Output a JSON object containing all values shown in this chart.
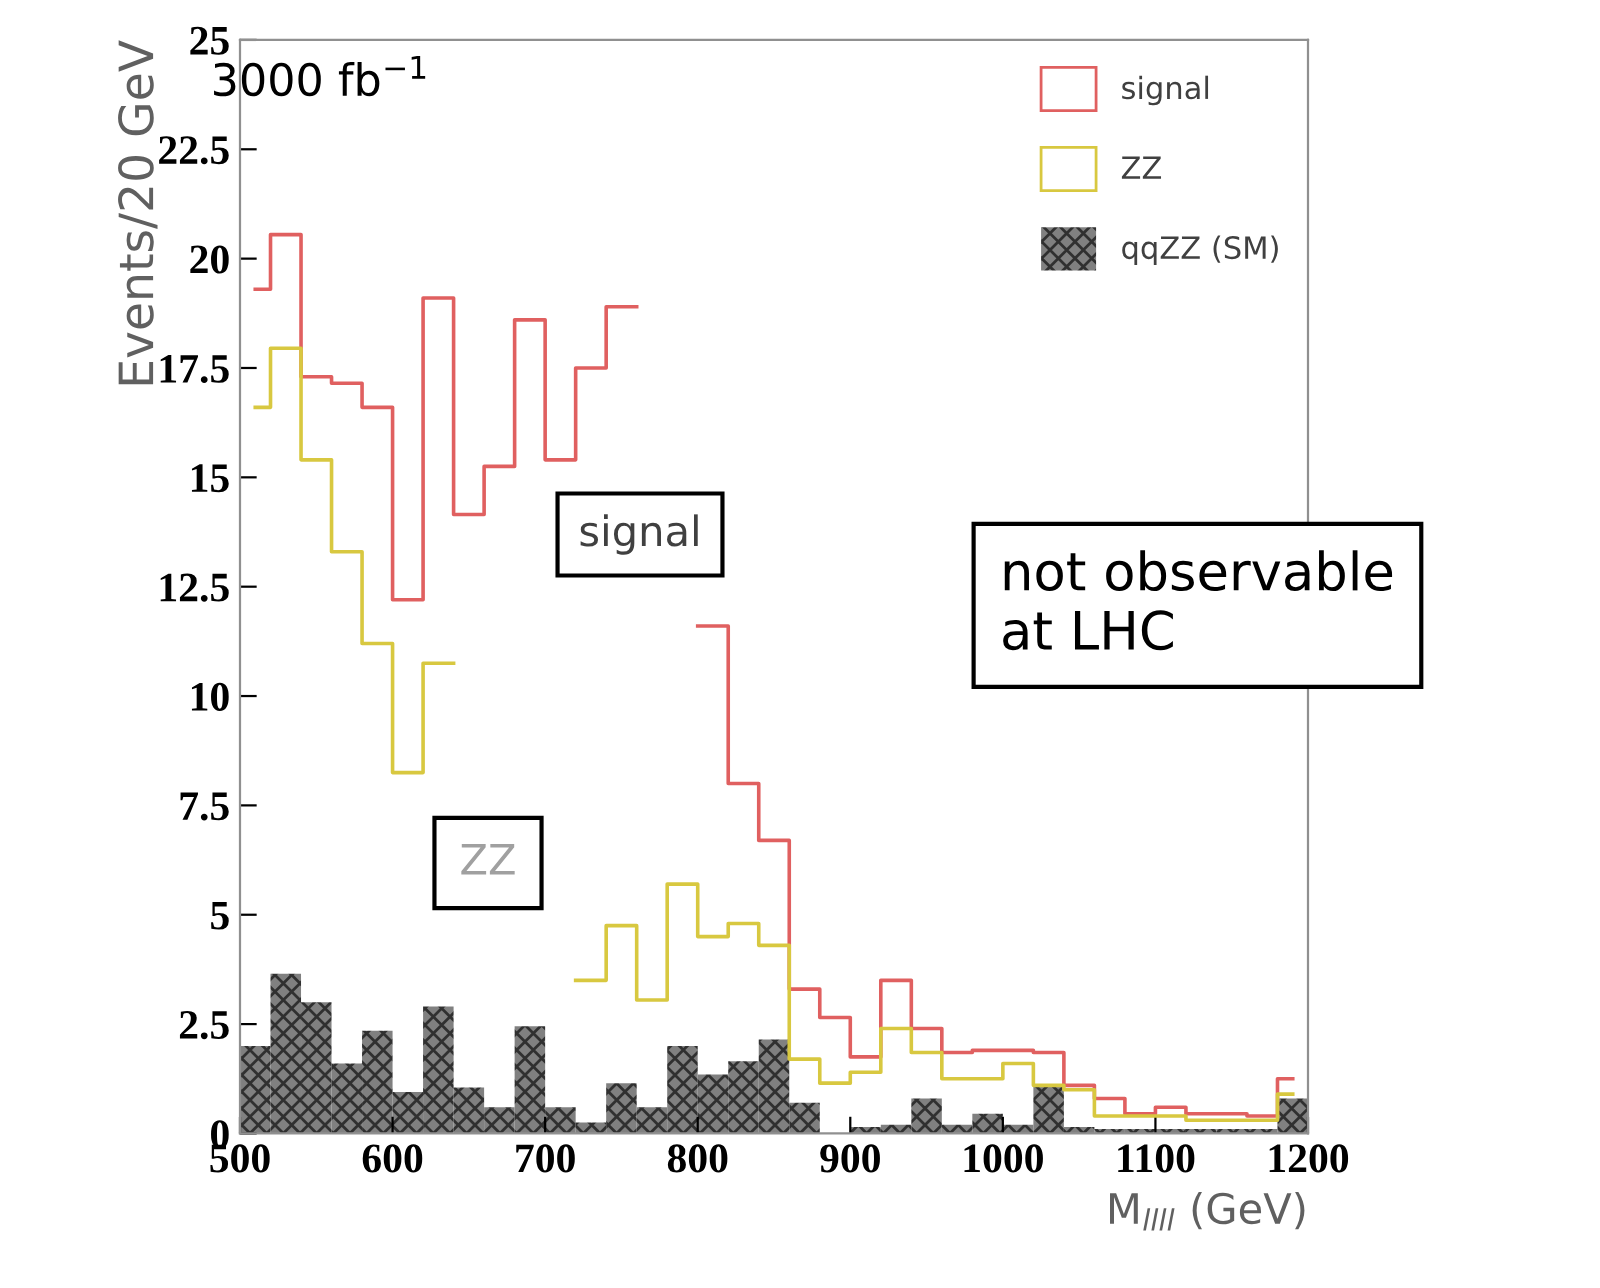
{
  "chart_data": {
    "type": "step",
    "x": [
      510,
      530,
      550,
      570,
      590,
      610,
      630,
      650,
      670,
      690,
      710,
      730,
      750,
      770,
      790,
      810,
      830,
      850,
      870,
      890,
      910,
      930,
      950,
      970,
      990,
      1010,
      1030,
      1050,
      1070,
      1090,
      1110,
      1130,
      1150,
      1170,
      1190
    ],
    "series": [
      {
        "name": "signal",
        "color": "#e06060",
        "values": [
          19.3,
          20.55,
          17.3,
          17.15,
          16.6,
          12.2,
          19.1,
          14.15,
          15.25,
          18.6,
          15.4,
          17.5,
          18.9,
          null,
          null,
          11.6,
          8.0,
          6.7,
          3.3,
          2.65,
          1.75,
          3.5,
          2.4,
          1.85,
          1.9,
          1.9,
          1.85,
          1.1,
          0.8,
          0.45,
          0.6,
          0.45,
          0.45,
          0.4,
          1.25
        ]
      },
      {
        "name": "ZZ",
        "color": "#d8c840",
        "values": [
          16.6,
          17.95,
          15.4,
          13.3,
          11.2,
          8.25,
          10.75,
          null,
          null,
          null,
          null,
          3.5,
          4.75,
          3.05,
          5.7,
          4.5,
          4.8,
          4.3,
          1.7,
          1.15,
          1.4,
          2.4,
          1.85,
          1.25,
          1.25,
          1.6,
          1.1,
          1.0,
          0.4,
          0.4,
          0.4,
          0.3,
          0.3,
          0.3,
          0.9
        ]
      },
      {
        "name": "qqZZ (SM)",
        "type": "bar",
        "color": "#808080",
        "values": [
          2.0,
          3.65,
          3.0,
          1.6,
          2.35,
          0.95,
          2.9,
          1.05,
          0.6,
          2.45,
          0.6,
          0.25,
          1.15,
          0.6,
          2.0,
          1.35,
          1.65,
          2.15,
          0.7,
          0.0,
          0.15,
          0.2,
          0.8,
          0.2,
          0.45,
          0.2,
          1.1,
          0.15,
          0.1,
          0.1,
          0.1,
          0.1,
          0.1,
          0.1,
          0.8
        ]
      }
    ],
    "xlabel": "M$_{llll}$ (GeV)",
    "ylabel": "Events/20 GeV",
    "xlim": [
      500,
      1200
    ],
    "xticks": [
      500,
      600,
      700,
      800,
      900,
      1000,
      1100,
      1200
    ],
    "ylim": [
      0,
      25
    ],
    "yticks": [
      0,
      2.5,
      5,
      7.5,
      10,
      12.5,
      15,
      17.5,
      20,
      22.5,
      25
    ],
    "annotations": [
      "3000 fb$^{−1}$",
      "signal",
      "ZZ",
      "not observable\nat LHC"
    ],
    "legend": "top right",
    "grid": false
  }
}
